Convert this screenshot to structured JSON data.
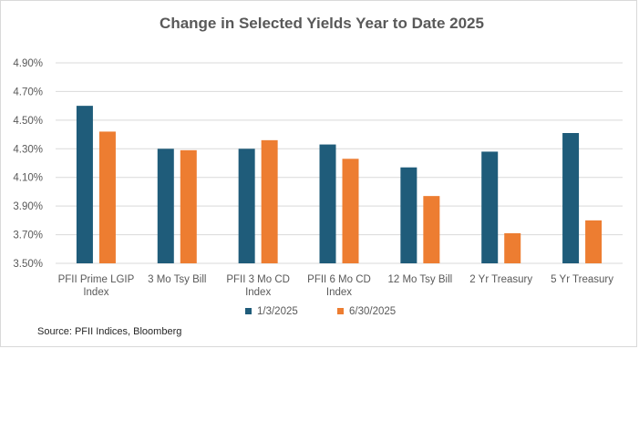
{
  "chart_data": {
    "type": "bar",
    "title": "Change in Selected Yields Year to Date 2025",
    "categories": [
      [
        "PFII Prime LGIP",
        "Index"
      ],
      [
        "3 Mo Tsy Bill"
      ],
      [
        "PFII 3 Mo CD",
        "Index"
      ],
      [
        "PFII 6 Mo CD",
        "Index"
      ],
      [
        "12 Mo Tsy Bill"
      ],
      [
        "2 Yr Treasury"
      ],
      [
        "5 Yr Treasury"
      ]
    ],
    "series": [
      {
        "name": "1/3/2025",
        "color": "#1f5c7a",
        "values": [
          4.6,
          4.3,
          4.3,
          4.33,
          4.17,
          4.28,
          4.41
        ]
      },
      {
        "name": "6/30/2025",
        "color": "#ed7d31",
        "values": [
          4.42,
          4.29,
          4.36,
          4.23,
          3.97,
          3.71,
          3.8
        ]
      }
    ],
    "ylim": [
      3.5,
      4.9
    ],
    "yticks": [
      "3.50%",
      "3.70%",
      "3.90%",
      "4.10%",
      "4.30%",
      "4.50%",
      "4.70%",
      "4.90%"
    ],
    "ytick_values": [
      3.5,
      3.7,
      3.9,
      4.1,
      4.3,
      4.5,
      4.7,
      4.9
    ],
    "grid": true,
    "legend_position": "bottom",
    "source": "Source: PFII Indices, Bloomberg"
  }
}
